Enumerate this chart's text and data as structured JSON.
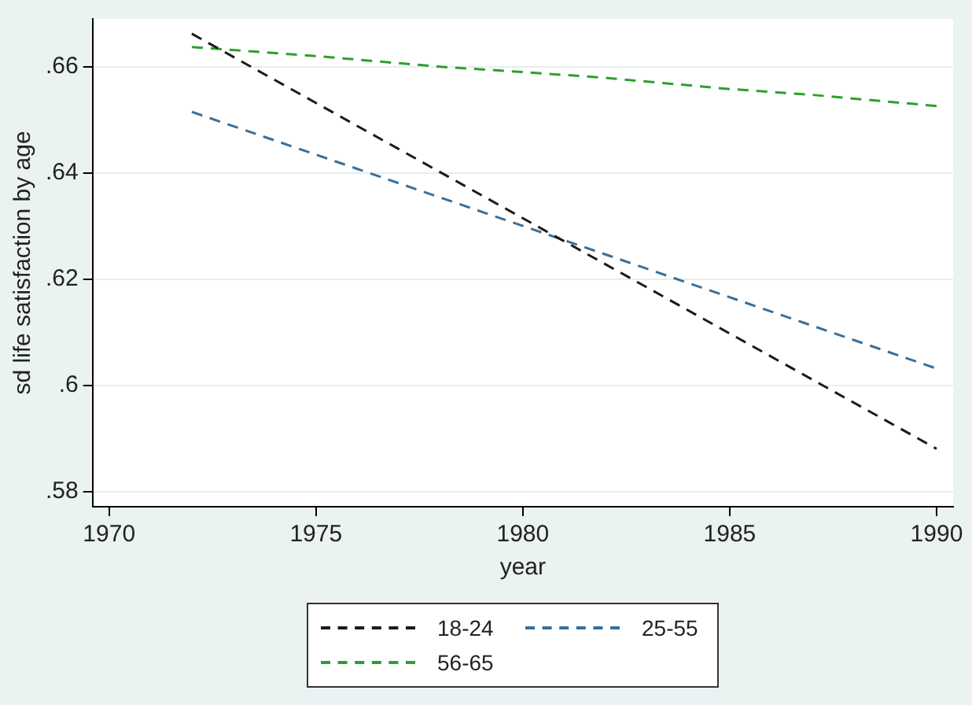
{
  "chart_data": {
    "type": "line",
    "xlabel": "year",
    "ylabel": "sd life satisfaction by age",
    "xlim": [
      1969.6,
      1990.4
    ],
    "xticks": [
      1970,
      1975,
      1980,
      1985,
      1990
    ],
    "ylim": [
      0.5772,
      0.669
    ],
    "yticks": [
      {
        "value": 0.58,
        "label": ".58"
      },
      {
        "value": 0.6,
        "label": ".6"
      },
      {
        "value": 0.62,
        "label": ".62"
      },
      {
        "value": 0.64,
        "label": ".64"
      },
      {
        "value": 0.66,
        "label": ".66"
      }
    ],
    "grid": "y",
    "legend": "bottom",
    "marker": "none",
    "line_style": "dashed",
    "series": [
      {
        "name": "18-24",
        "color": "#1a1a1a",
        "x": [
          1972,
          1990
        ],
        "values": [
          0.6662,
          0.5881
        ]
      },
      {
        "name": "25-55",
        "color": "#3a6f98",
        "x": [
          1972,
          1990
        ],
        "values": [
          0.6515,
          0.6032
        ]
      },
      {
        "name": "56-65",
        "color": "#2ca02c",
        "x": [
          1972,
          1975,
          1978,
          1980,
          1982,
          1985,
          1987,
          1990
        ],
        "values": [
          0.6637,
          0.662,
          0.66,
          0.659,
          0.6579,
          0.6558,
          0.6547,
          0.6526
        ]
      }
    ]
  }
}
